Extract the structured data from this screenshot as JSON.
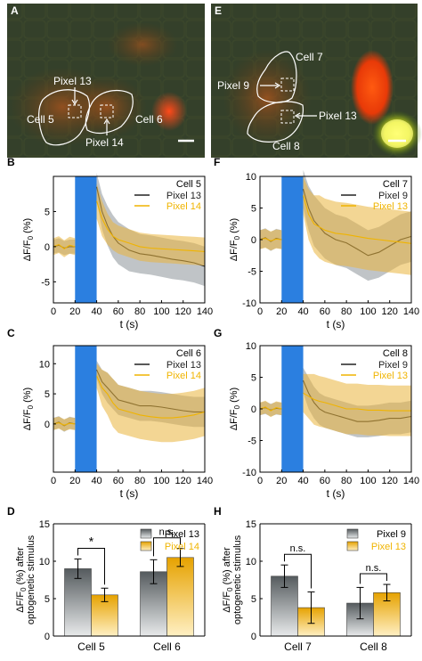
{
  "colors": {
    "stim": "#2b7fe0",
    "series_dark": "#222222",
    "series_orange": "#f0b400",
    "band_gray": "#8c9499",
    "band_orange": "#e9b43c",
    "bar_gray_top": "#555b5e",
    "bar_gray_bottom": "#e8eaeb",
    "bar_orange_top": "#e6a200",
    "bar_orange_bottom": "#fff0c4"
  },
  "panels": [
    {
      "letter": "A",
      "type": "image",
      "cells": [
        "Cell 5",
        "Cell 6"
      ],
      "pixels": [
        "Pixel 13",
        "Pixel 14"
      ]
    },
    {
      "letter": "E",
      "type": "image",
      "cells": [
        "Cell 7",
        "Cell 8"
      ],
      "pixels": [
        "Pixel 9",
        "Pixel 13"
      ]
    }
  ],
  "chart_data": [
    {
      "letter": "B",
      "type": "line",
      "title": "Cell 5",
      "xlabel": "t (s)",
      "ylabel": "ΔF/F0 (%)",
      "xlim": [
        0,
        140
      ],
      "ylim": [
        -8,
        10
      ],
      "xticks": [
        0,
        20,
        40,
        60,
        80,
        100,
        120,
        140
      ],
      "yticks": [
        -5,
        0,
        5
      ],
      "stimulus": [
        20,
        40
      ],
      "legend": "top-right",
      "series": [
        {
          "name": "Pixel 13",
          "color": "dark",
          "x": [
            0,
            5,
            10,
            15,
            20,
            40,
            45,
            50,
            55,
            60,
            70,
            80,
            90,
            100,
            110,
            120,
            130,
            140
          ],
          "y": [
            0,
            0.2,
            -0.2,
            0,
            0,
            8.5,
            5,
            3,
            1.5,
            0.5,
            -0.5,
            -1,
            -1.2,
            -1.5,
            -1.8,
            -2,
            -2.3,
            -2.8
          ],
          "band": [
            1,
            1,
            1,
            1,
            1,
            2,
            2.5,
            2.8,
            3,
            3,
            3,
            2.8,
            2.8,
            2.8,
            2.8,
            2.8,
            2.8,
            2.8
          ]
        },
        {
          "name": "Pixel 14",
          "color": "orange",
          "x": [
            0,
            5,
            10,
            15,
            20,
            40,
            45,
            50,
            55,
            60,
            70,
            80,
            90,
            100,
            110,
            120,
            130,
            140
          ],
          "y": [
            0,
            0.3,
            -0.3,
            0.2,
            0,
            6.5,
            4,
            2.5,
            1.5,
            1,
            0.5,
            0,
            -0.2,
            -0.3,
            -0.4,
            -0.5,
            -0.6,
            -0.7
          ],
          "band": [
            1.2,
            1.2,
            1.2,
            1.2,
            1.2,
            2.5,
            2.5,
            2.2,
            2,
            2,
            2,
            2,
            2,
            2,
            2,
            2,
            2,
            2
          ]
        }
      ]
    },
    {
      "letter": "F",
      "type": "line",
      "title": "Cell 7",
      "xlabel": "t (s)",
      "ylabel": "ΔF/F0 (%)",
      "xlim": [
        0,
        140
      ],
      "ylim": [
        -10,
        10
      ],
      "xticks": [
        0,
        20,
        40,
        60,
        80,
        100,
        120,
        140
      ],
      "yticks": [
        -10,
        -5,
        0,
        5,
        10
      ],
      "stimulus": [
        20,
        40
      ],
      "legend": "top-right",
      "series": [
        {
          "name": "Pixel 9",
          "color": "dark",
          "x": [
            0,
            5,
            10,
            15,
            20,
            40,
            45,
            50,
            55,
            60,
            70,
            80,
            90,
            100,
            110,
            120,
            130,
            140
          ],
          "y": [
            0,
            0.3,
            -0.3,
            0.2,
            0,
            8,
            5,
            3,
            2,
            1,
            0,
            -0.5,
            -1.5,
            -2.5,
            -2,
            -1,
            0,
            0.5
          ],
          "band": [
            1.5,
            1.5,
            1.5,
            1.5,
            1.5,
            3,
            3.5,
            4,
            4,
            4,
            4,
            4,
            4,
            4,
            4,
            4,
            4,
            4
          ]
        },
        {
          "name": "Pixel 13",
          "color": "orange",
          "x": [
            0,
            5,
            10,
            15,
            20,
            40,
            45,
            50,
            55,
            60,
            70,
            80,
            90,
            100,
            110,
            120,
            130,
            140
          ],
          "y": [
            0,
            0.2,
            -0.2,
            0.1,
            0,
            7,
            4,
            2.5,
            2,
            1.5,
            1,
            0.8,
            0.5,
            0.2,
            0,
            -0.2,
            -0.4,
            -0.6
          ],
          "band": [
            1.5,
            1.5,
            1.5,
            1.5,
            1.5,
            3,
            4,
            4.5,
            5,
            5,
            5,
            5,
            5,
            5,
            5,
            5,
            5,
            5
          ]
        }
      ]
    },
    {
      "letter": "C",
      "type": "line",
      "title": "Cell 6",
      "xlabel": "t (s)",
      "ylabel": "ΔF/F0 (%)",
      "xlim": [
        0,
        140
      ],
      "ylim": [
        -8,
        13
      ],
      "xticks": [
        0,
        20,
        40,
        60,
        80,
        100,
        120,
        140
      ],
      "yticks": [
        0,
        5,
        10
      ],
      "stimulus": [
        20,
        40
      ],
      "legend": "top-right",
      "series": [
        {
          "name": "Pixel 13",
          "color": "dark",
          "x": [
            0,
            5,
            10,
            15,
            20,
            40,
            45,
            50,
            55,
            60,
            70,
            80,
            90,
            100,
            110,
            120,
            130,
            140
          ],
          "y": [
            0,
            0.3,
            -0.3,
            0.2,
            0,
            9,
            7,
            6,
            5,
            4,
            3.5,
            3,
            3,
            2.8,
            2.5,
            2.2,
            2,
            2
          ],
          "band": [
            1,
            1,
            1,
            1,
            1,
            1.5,
            2,
            2.5,
            2.5,
            2.5,
            2.5,
            2.5,
            2.5,
            2.5,
            2.5,
            2.5,
            2.5,
            2.5
          ]
        },
        {
          "name": "Pixel 14",
          "color": "orange",
          "x": [
            0,
            5,
            10,
            15,
            20,
            40,
            45,
            50,
            55,
            60,
            70,
            80,
            90,
            100,
            110,
            120,
            130,
            140
          ],
          "y": [
            0,
            0.2,
            -0.2,
            0.1,
            0,
            8,
            6,
            5,
            3.5,
            2.5,
            2,
            1.5,
            1.2,
            1,
            1,
            1.2,
            1.5,
            2
          ],
          "band": [
            1,
            1,
            1,
            1,
            1,
            2,
            3,
            3.5,
            4,
            4,
            4,
            4,
            4,
            4,
            4,
            4,
            4,
            4
          ]
        }
      ]
    },
    {
      "letter": "G",
      "type": "line",
      "title": "Cell 8",
      "xlabel": "t (s)",
      "ylabel": "ΔF/F0 (%)",
      "xlim": [
        0,
        140
      ],
      "ylim": [
        -10,
        10
      ],
      "xticks": [
        0,
        20,
        40,
        60,
        80,
        100,
        120,
        140
      ],
      "yticks": [
        -10,
        -5,
        0,
        5,
        10
      ],
      "stimulus": [
        20,
        40
      ],
      "legend": "top-right",
      "series": [
        {
          "name": "Pixel 9",
          "color": "dark",
          "x": [
            0,
            5,
            10,
            15,
            20,
            40,
            45,
            50,
            55,
            60,
            70,
            80,
            90,
            100,
            110,
            120,
            130,
            140
          ],
          "y": [
            0,
            0.2,
            -0.2,
            0.1,
            0,
            4.5,
            2.5,
            1,
            0,
            -0.5,
            -1,
            -1.5,
            -2,
            -2,
            -1.8,
            -1.5,
            -1.5,
            -1.2
          ],
          "band": [
            1,
            1,
            1,
            1,
            1,
            2,
            2.5,
            2.5,
            2.5,
            2.5,
            2.5,
            2.5,
            2.5,
            2.5,
            2.5,
            2.5,
            2.5,
            2.5
          ]
        },
        {
          "name": "Pixel 13",
          "color": "orange",
          "x": [
            0,
            5,
            10,
            15,
            20,
            40,
            45,
            50,
            55,
            60,
            70,
            80,
            90,
            100,
            110,
            120,
            130,
            140
          ],
          "y": [
            0,
            0.3,
            -0.3,
            0.2,
            0,
            2.5,
            2,
            1.5,
            1.2,
            1,
            0.5,
            0,
            0,
            -0.2,
            -0.2,
            -0.3,
            -0.3,
            -0.3
          ],
          "band": [
            1,
            1,
            1,
            1,
            1,
            3,
            3.5,
            4,
            4,
            4,
            4,
            4,
            4,
            4,
            4,
            4,
            4,
            4
          ]
        }
      ]
    },
    {
      "letter": "D",
      "type": "bar",
      "ylabel": "ΔF/F0 (%) after optogenetic stimulus",
      "categories": [
        "Cell 5",
        "Cell 6"
      ],
      "ylim": [
        0,
        15
      ],
      "yticks": [
        0,
        5,
        10,
        15
      ],
      "legend": "top-right",
      "series": [
        {
          "name": "Pixel 13",
          "color": "gray",
          "values": [
            9.0,
            8.6
          ],
          "errors": [
            1.3,
            1.6
          ]
        },
        {
          "name": "Pixel 14",
          "color": "orange",
          "values": [
            5.5,
            10.5
          ],
          "errors": [
            0.9,
            1.2
          ]
        }
      ],
      "significance": [
        "*",
        "n.s."
      ]
    },
    {
      "letter": "H",
      "type": "bar",
      "ylabel": "ΔF/F0 (%) after optogenetic stimulus",
      "categories": [
        "Cell 7",
        "Cell 8"
      ],
      "ylim": [
        0,
        15
      ],
      "yticks": [
        0,
        5,
        10,
        15
      ],
      "legend": "top-right",
      "series": [
        {
          "name": "Pixel 9",
          "color": "gray",
          "values": [
            8.0,
            4.4
          ],
          "errors": [
            1.5,
            2.1
          ]
        },
        {
          "name": "Pixel 13",
          "color": "orange",
          "values": [
            3.8,
            5.8
          ],
          "errors": [
            2.1,
            1.1
          ]
        }
      ],
      "significance": [
        "n.s.",
        "n.s."
      ]
    }
  ]
}
